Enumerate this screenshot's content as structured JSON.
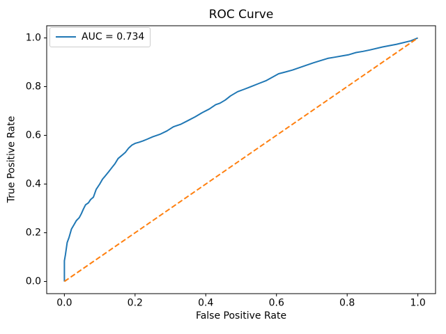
{
  "chart_data": {
    "type": "line",
    "title": "ROC Curve",
    "xlabel": "False Positive Rate",
    "ylabel": "True Positive Rate",
    "xlim": [
      -0.05,
      1.05
    ],
    "ylim": [
      -0.05,
      1.05
    ],
    "xticks": [
      0.0,
      0.2,
      0.4,
      0.6,
      0.8,
      1.0
    ],
    "yticks": [
      0.0,
      0.2,
      0.4,
      0.6,
      0.8,
      1.0
    ],
    "xtick_labels": [
      "0.0",
      "0.2",
      "0.4",
      "0.6",
      "0.8",
      "1.0"
    ],
    "ytick_labels": [
      "0.0",
      "0.2",
      "0.4",
      "0.6",
      "0.8",
      "1.0"
    ],
    "grid": false,
    "background": "#ffffff",
    "spine_color": "#000000",
    "tick_color": "#000000",
    "auc": 0.734,
    "legend": {
      "location": "upper left",
      "entries": [
        {
          "label": "AUC = 0.734",
          "color": "#1f77b4",
          "linestyle": "solid"
        }
      ]
    },
    "series": [
      {
        "name": "roc-curve",
        "label": "AUC = 0.734",
        "color": "#1f77b4",
        "linestyle": "solid",
        "points": [
          [
            0,
            0
          ],
          [
            0,
            0.085
          ],
          [
            0.003,
            0.11
          ],
          [
            0.008,
            0.16
          ],
          [
            0.013,
            0.18
          ],
          [
            0.02,
            0.215
          ],
          [
            0.028,
            0.235
          ],
          [
            0.034,
            0.25
          ],
          [
            0.042,
            0.262
          ],
          [
            0.048,
            0.278
          ],
          [
            0.054,
            0.298
          ],
          [
            0.06,
            0.315
          ],
          [
            0.068,
            0.323
          ],
          [
            0.074,
            0.336
          ],
          [
            0.082,
            0.346
          ],
          [
            0.09,
            0.378
          ],
          [
            0.1,
            0.4
          ],
          [
            0.108,
            0.42
          ],
          [
            0.115,
            0.432
          ],
          [
            0.125,
            0.45
          ],
          [
            0.133,
            0.465
          ],
          [
            0.143,
            0.483
          ],
          [
            0.152,
            0.505
          ],
          [
            0.163,
            0.518
          ],
          [
            0.173,
            0.531
          ],
          [
            0.182,
            0.548
          ],
          [
            0.191,
            0.56
          ],
          [
            0.2,
            0.567
          ],
          [
            0.212,
            0.572
          ],
          [
            0.222,
            0.577
          ],
          [
            0.232,
            0.583
          ],
          [
            0.25,
            0.594
          ],
          [
            0.27,
            0.604
          ],
          [
            0.29,
            0.618
          ],
          [
            0.305,
            0.632
          ],
          [
            0.31,
            0.636
          ],
          [
            0.33,
            0.646
          ],
          [
            0.35,
            0.661
          ],
          [
            0.37,
            0.676
          ],
          [
            0.39,
            0.693
          ],
          [
            0.41,
            0.708
          ],
          [
            0.428,
            0.726
          ],
          [
            0.44,
            0.732
          ],
          [
            0.455,
            0.745
          ],
          [
            0.47,
            0.762
          ],
          [
            0.49,
            0.779
          ],
          [
            0.51,
            0.79
          ],
          [
            0.53,
            0.801
          ],
          [
            0.55,
            0.813
          ],
          [
            0.57,
            0.824
          ],
          [
            0.59,
            0.84
          ],
          [
            0.606,
            0.853
          ],
          [
            0.625,
            0.86
          ],
          [
            0.645,
            0.868
          ],
          [
            0.665,
            0.878
          ],
          [
            0.685,
            0.888
          ],
          [
            0.705,
            0.898
          ],
          [
            0.725,
            0.907
          ],
          [
            0.745,
            0.916
          ],
          [
            0.765,
            0.921
          ],
          [
            0.785,
            0.926
          ],
          [
            0.805,
            0.931
          ],
          [
            0.825,
            0.94
          ],
          [
            0.845,
            0.945
          ],
          [
            0.865,
            0.951
          ],
          [
            0.9,
            0.963
          ],
          [
            0.94,
            0.974
          ],
          [
            0.98,
            0.988
          ],
          [
            1,
            1
          ]
        ]
      },
      {
        "name": "chance-diagonal",
        "color": "#ff7f0e",
        "linestyle": "dashed",
        "points": [
          [
            0,
            0
          ],
          [
            1,
            1
          ]
        ]
      }
    ]
  }
}
